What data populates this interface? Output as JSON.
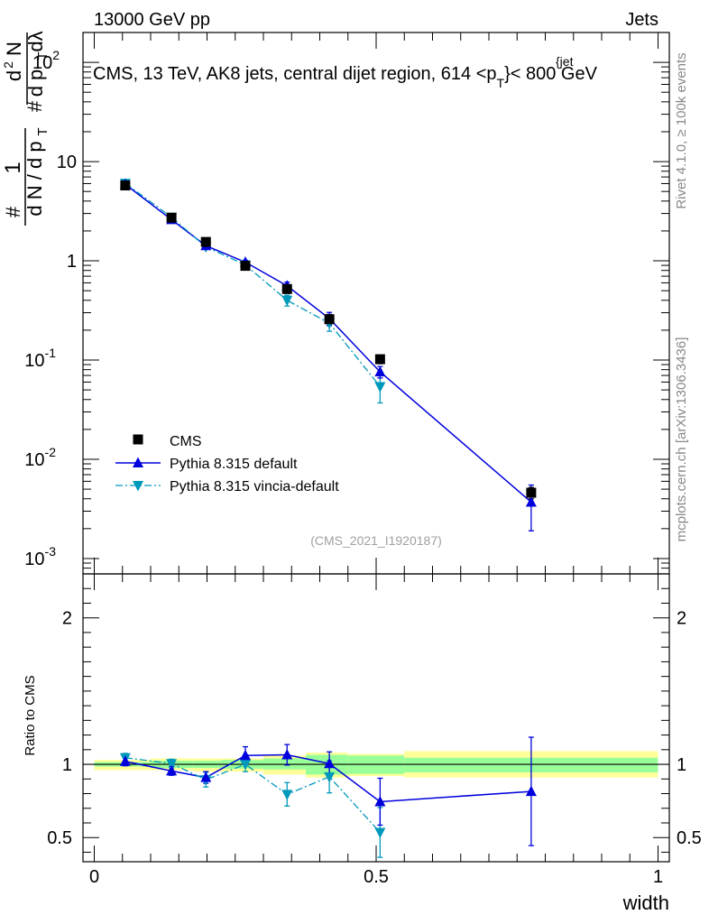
{
  "header": {
    "left": "13000 GeV pp",
    "right": "Jets"
  },
  "side_labels": {
    "rivet": "Rivet 4.1.0, ≥ 100k events",
    "mcplots": "mcplots.cern.ch [arXiv:1306.3436]"
  },
  "colors": {
    "cms": "#000000",
    "pythia_default": "#0000dd",
    "vincia": "#0099bb",
    "band_inner": "#99ff99",
    "band_outer": "#ffff99"
  },
  "chart_data": [
    {
      "type": "line",
      "panel": "main",
      "title": "CMS, 13 TeV, AK8 jets, central dijet region, 614 <p_T^{jet}< 800 GeV",
      "title_parts": {
        "pre": "CMS, 13 TeV, AK8 jets, central dijet region, 614 <p",
        "sub": "T",
        "sup": "{jet",
        "post": "}< 800 GeV"
      },
      "ylabel": "1 / (dN / dp_T) · d²N / (dp_T dλ)",
      "ylabel_parts": {
        "hash1": "#",
        "one": "1",
        "dn": "d N / d p",
        "t": "T",
        "hash2": "#",
        "d2n": "d",
        "two": "2",
        "n": "N",
        "hash3": "#",
        "dpt": "d p",
        "dl": "dλ"
      },
      "y_scale": "log",
      "xlim": [
        0,
        1
      ],
      "ylim": [
        0.0007,
        200
      ],
      "y_tick_labels": [
        {
          "value": 0.001,
          "base": "10",
          "exp": "-3"
        },
        {
          "value": 0.01,
          "base": "10",
          "exp": "-2"
        },
        {
          "value": 0.1,
          "base": "10",
          "exp": "-1"
        },
        {
          "value": 1,
          "base": "1",
          "exp": ""
        },
        {
          "value": 10,
          "base": "10",
          "exp": ""
        },
        {
          "value": 100,
          "base": "10",
          "exp": "2"
        }
      ],
      "watermark": "(CMS_2021_I1920187)",
      "legend_position": "bottom-left",
      "series": [
        {
          "name": "CMS",
          "style": "markers-square",
          "x": [
            0.055,
            0.137,
            0.198,
            0.268,
            0.342,
            0.417,
            0.507,
            0.775
          ],
          "y": [
            5.75,
            2.72,
            1.55,
            0.89,
            0.52,
            0.258,
            0.102,
            0.0046
          ],
          "err": [
            0.25,
            0.12,
            0.06,
            0.05,
            0.05,
            0.03,
            0.01,
            0.0006
          ]
        },
        {
          "name": "Pythia 8.315 default",
          "style": "line-triangle-up",
          "x": [
            0.055,
            0.137,
            0.198,
            0.268,
            0.342,
            0.417,
            0.507,
            0.775
          ],
          "y": [
            5.9,
            2.6,
            1.42,
            0.97,
            0.56,
            0.262,
            0.076,
            0.0037
          ],
          "err": [
            0.2,
            0.1,
            0.06,
            0.04,
            0.05,
            0.04,
            0.01,
            0.0018
          ]
        },
        {
          "name": "Pythia 8.315 vincia-default",
          "style": "dashdot-triangle-down",
          "x": [
            0.055,
            0.137,
            0.198,
            0.268,
            0.342,
            0.417,
            0.507
          ],
          "y": [
            6.05,
            2.75,
            1.38,
            0.91,
            0.4,
            0.235,
            0.054
          ],
          "err": [
            0.2,
            0.1,
            0.06,
            0.06,
            0.05,
            0.04,
            0.017
          ]
        }
      ]
    },
    {
      "type": "line",
      "panel": "ratio",
      "ylabel": "Ratio to CMS",
      "xlabel": "width",
      "xlim": [
        -0.02,
        1.02
      ],
      "ylim": [
        0.335,
        2.3
      ],
      "y_ticks": [
        0.5,
        1,
        2
      ],
      "y_tick_labels": [
        "0.5",
        "1",
        "2"
      ],
      "x_ticks": [
        0,
        0.5,
        1
      ],
      "x_tick_labels": [
        "0",
        "0.5",
        "1"
      ],
      "bins": [
        0,
        0.1,
        0.175,
        0.225,
        0.3,
        0.375,
        0.45,
        0.55,
        1.0
      ],
      "band_inner": [
        [
          0.985,
          1.015
        ],
        [
          0.975,
          1.025
        ],
        [
          0.975,
          1.025
        ],
        [
          0.97,
          1.03
        ],
        [
          0.965,
          1.04
        ],
        [
          0.93,
          1.065
        ],
        [
          0.935,
          1.06
        ],
        [
          0.945,
          1.045
        ]
      ],
      "band_outer": [
        [
          0.96,
          1.03
        ],
        [
          0.96,
          1.04
        ],
        [
          0.95,
          1.04
        ],
        [
          0.95,
          1.04
        ],
        [
          0.93,
          1.06
        ],
        [
          0.91,
          1.08
        ],
        [
          0.92,
          1.07
        ],
        [
          0.91,
          1.09
        ]
      ],
      "series": [
        {
          "name": "Pythia 8.315 default",
          "x": [
            0.055,
            0.137,
            0.198,
            0.268,
            0.342,
            0.417,
            0.507,
            0.775
          ],
          "y": [
            1.02,
            0.955,
            0.91,
            1.06,
            1.065,
            1.005,
            0.745,
            0.815
          ],
          "err": [
            0.03,
            0.03,
            0.04,
            0.06,
            0.07,
            0.08,
            0.16,
            0.37
          ]
        },
        {
          "name": "Pythia 8.315 vincia-default",
          "x": [
            0.055,
            0.137,
            0.198,
            0.268,
            0.342,
            0.417,
            0.507
          ],
          "y": [
            1.045,
            1.005,
            0.895,
            1.0,
            0.795,
            0.915,
            0.535
          ],
          "err": [
            0.03,
            0.03,
            0.05,
            0.05,
            0.08,
            0.11,
            0.17
          ]
        }
      ]
    }
  ]
}
